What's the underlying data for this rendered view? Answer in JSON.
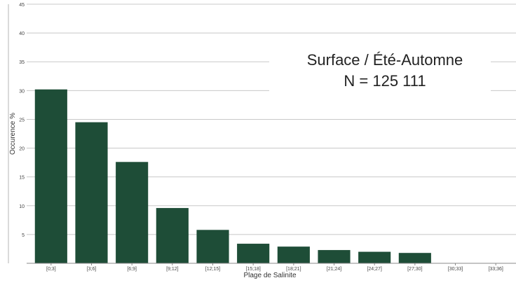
{
  "chart_data": {
    "type": "bar",
    "title": "",
    "xlabel": "Plage de Salinite",
    "ylabel": "Occurence %",
    "categories": [
      "[0;3]",
      "[3;6]",
      "[6;9]",
      "[9;12]",
      "[12;15]",
      "[15;18]",
      "[18;21]",
      "[21;24]",
      "[24;27]",
      "[27;30]",
      "[30;33]",
      "[33;36]"
    ],
    "values": [
      30.2,
      24.5,
      17.6,
      9.6,
      5.8,
      3.4,
      2.9,
      2.3,
      2.0,
      1.8,
      0,
      0
    ],
    "ylim": [
      0,
      45
    ],
    "yticks": [
      5,
      10,
      15,
      20,
      25,
      30,
      35,
      40,
      45
    ],
    "grid": true,
    "bar_color": "#1e4d37",
    "annotation": {
      "line1": "Surface / Été-Automne",
      "line2": "N = 125 111"
    }
  }
}
